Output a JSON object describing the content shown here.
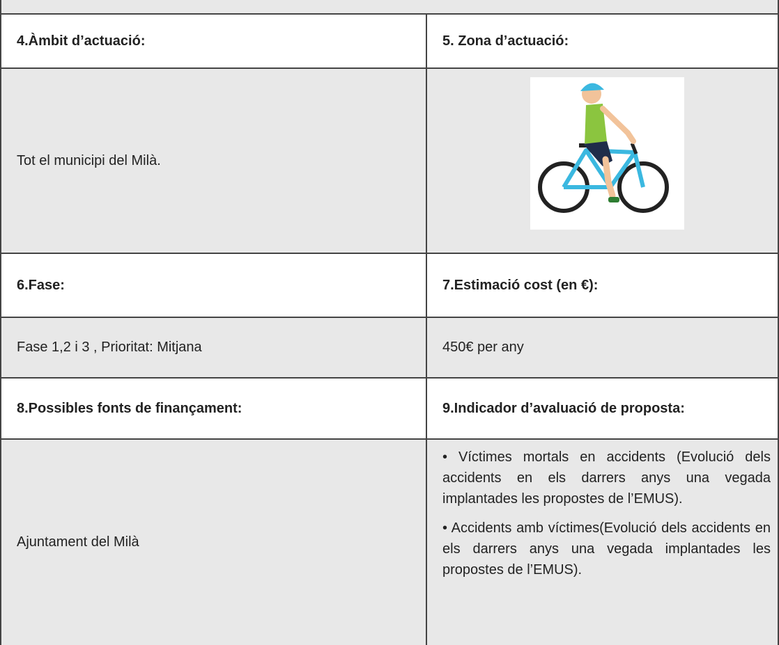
{
  "table": {
    "rows": [
      [
        "4.Àmbit d’actuació:",
        "5. Zona d’actuació:"
      ],
      [
        "Tot el municipi del Milà."
      ],
      [
        "6.Fase:",
        "7.Estimació cost (en €):"
      ],
      [
        "Fase 1,2 i 3 , Prioritat: Mitjana",
        "450€ per any"
      ],
      [
        "8.Possibles fonts de finançament:",
        "9.Indicador d’avaluació de proposta:"
      ],
      [
        "Ajuntament del Milà",
        [
          "• Víctimes mortals en accidents (Evolució dels accidents en els darrers anys una vegada implantades les propostes de l’EMUS).",
          "• Accidents amb víctimes(Evolució dels accidents en els darrers anys una vegada implantades les propostes de l’EMUS)."
        ]
      ]
    ]
  }
}
